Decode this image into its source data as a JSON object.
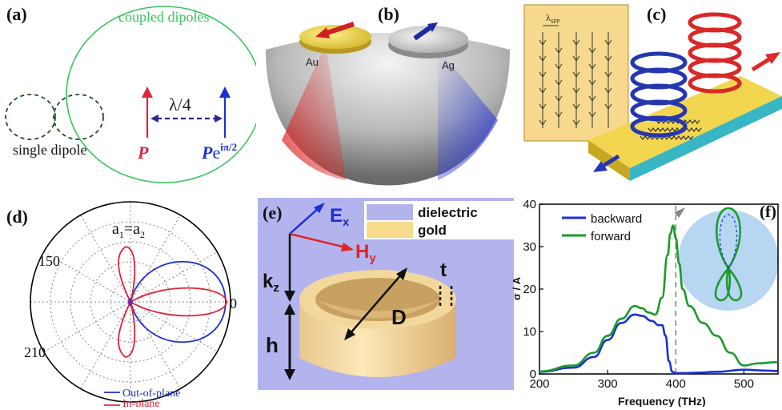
{
  "panels": {
    "a": {
      "label": "(a)",
      "coupled": "coupled dipoles",
      "single": "single dipole",
      "lambda": "λ/4",
      "p_left": "P",
      "p_right_base": "P",
      "p_right_e": "e",
      "p_right_exp": "iπ/2",
      "colors": {
        "green": "#35c65a",
        "dark_green": "#1f4d1f",
        "red": "#e0243a",
        "blue": "#1a2fd6",
        "dash_blue": "#28289a"
      }
    },
    "b": {
      "label": "(b)",
      "au": "Au",
      "ag": "Ag"
    },
    "c": {
      "label": "(c)",
      "inset_label": "λ",
      "inset_sub": "SPP"
    },
    "d": {
      "label": "(d)",
      "title_a1": "a",
      "title_sub1": "1",
      "title_eq": "=a",
      "title_sub2": "2",
      "tick_150": "150",
      "tick_0": "0",
      "tick_210": "210",
      "legend": [
        {
          "name": "Out-of-plane",
          "color": "#1a2fd6"
        },
        {
          "name": "In-plane",
          "color": "#e0243a"
        }
      ]
    },
    "e": {
      "label": "(e)",
      "ex": "E",
      "ex_sub": "x",
      "hy": "H",
      "hy_sub": "y",
      "kz": "k",
      "kz_sub": "z",
      "d": "D",
      "h": "h",
      "t": "t",
      "legend": [
        {
          "name": "dielectric",
          "color": "#b3b3ee"
        },
        {
          "name": "gold",
          "color": "#f6dc8c"
        }
      ]
    },
    "f": {
      "label": "(f)"
    }
  },
  "chart_data": {
    "type": "line",
    "title": "",
    "xlabel": "Frequency (THz)",
    "ylabel": "σ / A",
    "xlim": [
      200,
      550
    ],
    "ylim": [
      0,
      40
    ],
    "xticks": [
      "200",
      "300",
      "400",
      "500"
    ],
    "yticks": [
      "0",
      "10",
      "20",
      "30",
      "40"
    ],
    "legend_position": "top-left",
    "dashed_marker_x": 400,
    "series": [
      {
        "name": "backward",
        "color": "#1a2fd6",
        "x": [
          200,
          250,
          280,
          300,
          320,
          340,
          350,
          365,
          375,
          380,
          385,
          390,
          395,
          400,
          410,
          430,
          460,
          500,
          530,
          550
        ],
        "y": [
          0.5,
          1.5,
          4,
          8,
          12,
          14,
          13.7,
          12.5,
          11.5,
          11.5,
          9,
          3,
          0.5,
          0.2,
          0.2,
          0.3,
          0.5,
          1,
          0.8,
          0.7
        ]
      },
      {
        "name": "forward",
        "color": "#1a9a2a",
        "x": [
          200,
          250,
          280,
          300,
          320,
          340,
          350,
          360,
          370,
          380,
          388,
          392,
          396,
          400,
          405,
          410,
          420,
          440,
          460,
          480,
          500,
          520,
          550
        ],
        "y": [
          0.6,
          2,
          5,
          9,
          13,
          16,
          15.5,
          14.5,
          14,
          18,
          28,
          33,
          35,
          32,
          26,
          20,
          16,
          12,
          9,
          5,
          2,
          2.5,
          2.8
        ]
      }
    ]
  }
}
